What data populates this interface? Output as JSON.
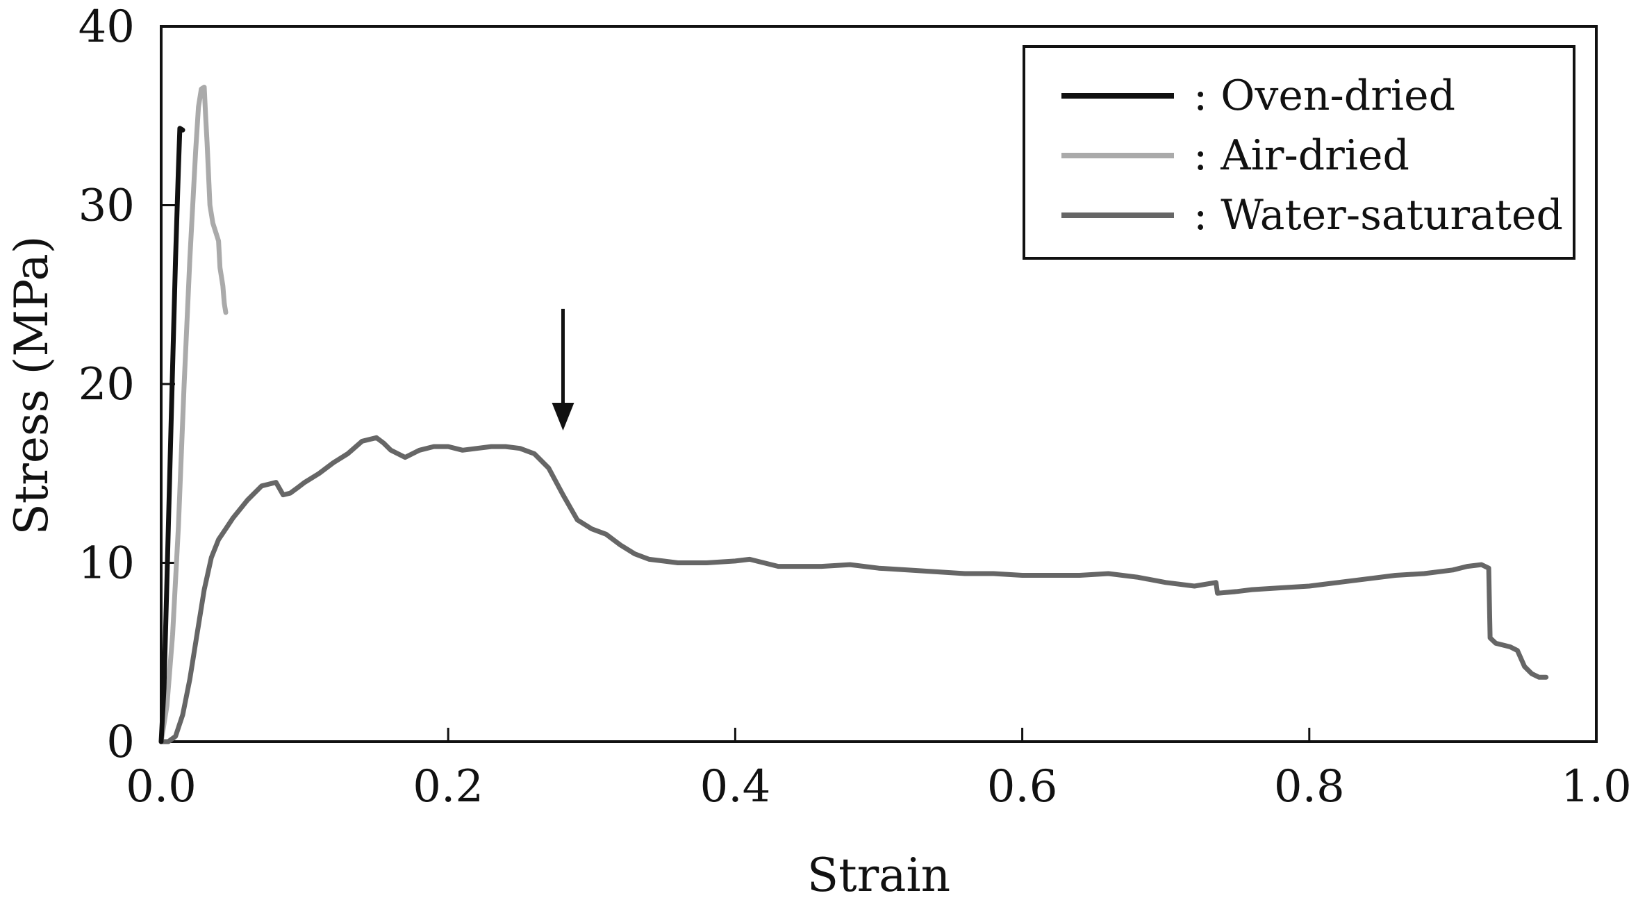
{
  "chart_data": {
    "type": "line",
    "title": "",
    "xlabel": "Strain",
    "ylabel": "Stress (MPa)",
    "xlim": [
      0.0,
      1.0
    ],
    "ylim": [
      0,
      40
    ],
    "x_ticks": [
      0.0,
      0.2,
      0.4,
      0.6,
      0.8,
      1.0
    ],
    "x_tick_labels": [
      "0.0",
      "0.2",
      "0.4",
      "0.6",
      "0.8",
      "1.0"
    ],
    "y_ticks": [
      0,
      10,
      20,
      30,
      40
    ],
    "y_tick_labels": [
      "0",
      "10",
      "20",
      "30",
      "40"
    ],
    "grid": false,
    "legend_position": "top-right",
    "series": [
      {
        "name": ": Oven-dried",
        "color": "#111111",
        "x": [
          0.0,
          0.002,
          0.004,
          0.006,
          0.008,
          0.01,
          0.012,
          0.013,
          0.015
        ],
        "y": [
          0.0,
          3.0,
          9.0,
          15.0,
          21.0,
          27.0,
          32.0,
          34.3,
          34.2
        ]
      },
      {
        "name": ": Air-dried",
        "color": "#aaaaaa",
        "x": [
          0.0,
          0.004,
          0.008,
          0.012,
          0.016,
          0.02,
          0.024,
          0.026,
          0.028,
          0.03,
          0.031,
          0.032,
          0.034,
          0.036,
          0.038,
          0.04,
          0.041,
          0.043,
          0.044,
          0.045
        ],
        "y": [
          0.0,
          2.0,
          6.0,
          12.0,
          20.0,
          27.0,
          33.0,
          35.5,
          36.5,
          36.6,
          35.0,
          33.5,
          30.0,
          29.0,
          28.5,
          28.0,
          26.5,
          25.5,
          24.5,
          24.0
        ]
      },
      {
        "name": ": Water-saturated",
        "color": "#666666",
        "x": [
          0.0,
          0.005,
          0.01,
          0.015,
          0.02,
          0.025,
          0.03,
          0.035,
          0.04,
          0.045,
          0.05,
          0.06,
          0.07,
          0.08,
          0.085,
          0.09,
          0.095,
          0.1,
          0.11,
          0.12,
          0.13,
          0.14,
          0.15,
          0.155,
          0.16,
          0.17,
          0.18,
          0.19,
          0.2,
          0.21,
          0.22,
          0.23,
          0.24,
          0.25,
          0.26,
          0.27,
          0.28,
          0.29,
          0.3,
          0.31,
          0.32,
          0.33,
          0.34,
          0.35,
          0.36,
          0.38,
          0.4,
          0.41,
          0.42,
          0.43,
          0.44,
          0.46,
          0.48,
          0.5,
          0.52,
          0.54,
          0.56,
          0.58,
          0.6,
          0.62,
          0.64,
          0.66,
          0.68,
          0.7,
          0.72,
          0.735,
          0.736,
          0.75,
          0.76,
          0.78,
          0.8,
          0.82,
          0.84,
          0.86,
          0.88,
          0.9,
          0.91,
          0.92,
          0.925,
          0.926,
          0.93,
          0.94,
          0.945,
          0.95,
          0.955,
          0.96,
          0.965
        ],
        "y": [
          0.0,
          0.0,
          0.3,
          1.5,
          3.5,
          6.0,
          8.5,
          10.3,
          11.3,
          11.9,
          12.5,
          13.5,
          14.3,
          14.5,
          13.8,
          13.9,
          14.2,
          14.5,
          15.0,
          15.6,
          16.1,
          16.8,
          17.0,
          16.7,
          16.3,
          15.9,
          16.3,
          16.5,
          16.5,
          16.3,
          16.4,
          16.5,
          16.5,
          16.4,
          16.1,
          15.3,
          13.8,
          12.4,
          11.9,
          11.6,
          11.0,
          10.5,
          10.2,
          10.1,
          10.0,
          10.0,
          10.1,
          10.2,
          10.0,
          9.8,
          9.8,
          9.8,
          9.9,
          9.7,
          9.6,
          9.5,
          9.4,
          9.4,
          9.3,
          9.3,
          9.3,
          9.4,
          9.2,
          8.9,
          8.7,
          8.9,
          8.3,
          8.4,
          8.5,
          8.6,
          8.7,
          8.9,
          9.1,
          9.3,
          9.4,
          9.6,
          9.8,
          9.9,
          9.7,
          5.8,
          5.5,
          5.3,
          5.1,
          4.2,
          3.8,
          3.6,
          3.6
        ]
      }
    ],
    "annotations": [
      {
        "type": "arrow",
        "x": 0.28,
        "y_from": 24.2,
        "y_to": 17.4
      }
    ]
  }
}
